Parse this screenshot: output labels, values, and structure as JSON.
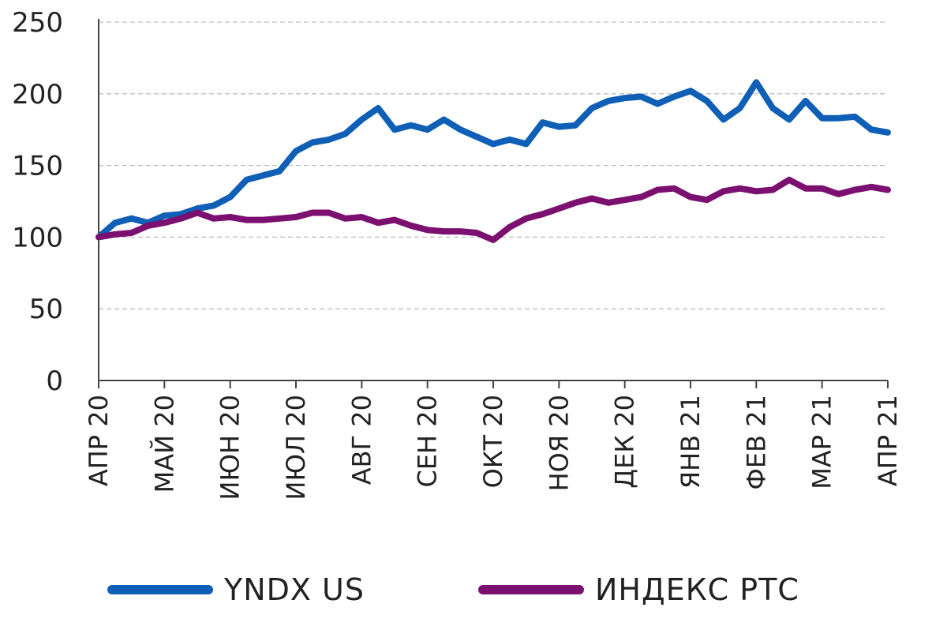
{
  "chart_data": {
    "type": "line",
    "ylim": [
      0,
      250
    ],
    "yticks": [
      "0",
      "50",
      "100",
      "150",
      "200",
      "250"
    ],
    "grid": true,
    "legend_position": "bottom",
    "categories": [
      "АПР 20",
      "МАЙ 20",
      "ИЮН 20",
      "ИЮЛ 20",
      "АВГ 20",
      "СЕН 20",
      "ОКТ 20",
      "НОЯ 20",
      "ДЕК 20",
      "ЯНВ 21",
      "ФЕВ 21",
      "МАР 21",
      "АПР 21"
    ],
    "x": [
      0,
      0.25,
      0.5,
      0.75,
      1,
      1.25,
      1.5,
      1.75,
      2,
      2.25,
      2.5,
      2.75,
      3,
      3.25,
      3.5,
      3.75,
      4,
      4.25,
      4.5,
      4.75,
      5,
      5.25,
      5.5,
      5.75,
      6,
      6.25,
      6.5,
      6.75,
      7,
      7.25,
      7.5,
      7.75,
      8,
      8.25,
      8.5,
      8.75,
      9,
      9.25,
      9.5,
      9.75,
      10,
      10.25,
      10.5,
      10.75,
      11,
      11.25,
      11.5,
      11.75,
      12
    ],
    "series": [
      {
        "name": "YNDX US",
        "color": "#0e5fb5",
        "values": [
          100,
          110,
          113,
          110,
          115,
          116,
          120,
          122,
          128,
          140,
          143,
          146,
          160,
          166,
          168,
          172,
          182,
          190,
          175,
          178,
          175,
          182,
          175,
          170,
          165,
          168,
          165,
          180,
          177,
          178,
          190,
          195,
          197,
          198,
          193,
          198,
          202,
          195,
          182,
          190,
          208,
          190,
          182,
          195,
          183,
          183,
          184,
          175,
          173
        ]
      },
      {
        "name": "ИНДЕКС РТС",
        "color": "#7b1071",
        "values": [
          100,
          102,
          103,
          108,
          110,
          113,
          117,
          113,
          114,
          112,
          112,
          113,
          114,
          117,
          117,
          113,
          114,
          110,
          112,
          108,
          105,
          104,
          104,
          103,
          98,
          107,
          113,
          116,
          120,
          124,
          127,
          124,
          126,
          128,
          133,
          134,
          128,
          126,
          132,
          134,
          132,
          133,
          140,
          134,
          134,
          130,
          133,
          135,
          133
        ]
      }
    ]
  },
  "legend": {
    "item1_label": "YNDX US",
    "item2_label": "ИНДЕКС РТС"
  }
}
